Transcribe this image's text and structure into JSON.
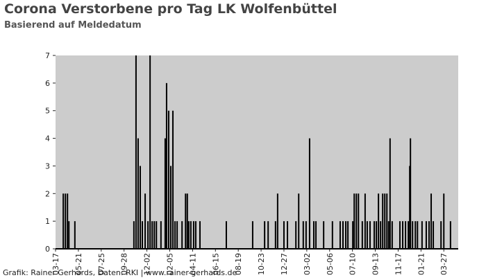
{
  "chart_data": {
    "type": "bar",
    "title": "Corona Verstorbene pro Tag LK Wolfenbüttel",
    "subtitle": "Basierend auf Meldedatum",
    "footer": "Grafik: Rainer Gerhards, Daten: RKI | www.rainer-gerhards.de",
    "color": "#000000",
    "x": [
      22,
      28,
      34,
      38,
      55,
      223,
      229,
      235,
      241,
      247,
      255,
      263,
      269,
      275,
      281,
      287,
      300,
      312,
      316,
      322,
      328,
      334,
      340,
      346,
      360,
      370,
      375,
      379,
      385,
      393,
      399,
      411,
      486,
      561,
      595,
      605,
      626,
      632,
      650,
      660,
      684,
      692,
      705,
      713,
      723,
      735,
      741,
      763,
      788,
      810,
      818,
      826,
      832,
      846,
      850,
      856,
      862,
      873,
      881,
      887,
      895,
      907,
      913,
      919,
      925,
      931,
      937,
      943,
      948,
      952,
      958,
      980,
      988,
      996,
      1004,
      1008,
      1010,
      1016,
      1024,
      1030,
      1043,
      1055,
      1063,
      1069,
      1075,
      1097,
      1105,
      1124
    ],
    "values": [
      2,
      2,
      2,
      1,
      1,
      1,
      7,
      4,
      3,
      1,
      2,
      1,
      7,
      1,
      1,
      1,
      1,
      4,
      6,
      5,
      3,
      5,
      1,
      1,
      1,
      2,
      2,
      1,
      1,
      1,
      1,
      1,
      1,
      1,
      1,
      1,
      1,
      2,
      1,
      1,
      1,
      2,
      1,
      1,
      4,
      1,
      1,
      1,
      1,
      1,
      1,
      1,
      1,
      1,
      2,
      2,
      2,
      1,
      2,
      1,
      1,
      1,
      1,
      2,
      1,
      2,
      2,
      2,
      1,
      4,
      1,
      1,
      1,
      1,
      1,
      3,
      4,
      1,
      1,
      1,
      1,
      1,
      1,
      2,
      1,
      1,
      2,
      1
    ],
    "xlim": [
      0,
      1146
    ],
    "xticks": [
      {
        "value": 0,
        "label": "03-17"
      },
      {
        "value": 65,
        "label": "05-21"
      },
      {
        "value": 130,
        "label": "07-25"
      },
      {
        "value": 195,
        "label": "09-28"
      },
      {
        "value": 260,
        "label": "12-02"
      },
      {
        "value": 325,
        "label": "02-05"
      },
      {
        "value": 390,
        "label": "04-11"
      },
      {
        "value": 455,
        "label": "06-15"
      },
      {
        "value": 520,
        "label": "08-19"
      },
      {
        "value": 585,
        "label": "10-23"
      },
      {
        "value": 650,
        "label": "12-27"
      },
      {
        "value": 715,
        "label": "03-02"
      },
      {
        "value": 780,
        "label": "05-06"
      },
      {
        "value": 845,
        "label": "07-10"
      },
      {
        "value": 910,
        "label": "09-13"
      },
      {
        "value": 975,
        "label": "11-17"
      },
      {
        "value": 1040,
        "label": "01-21"
      },
      {
        "value": 1105,
        "label": "03-27"
      }
    ],
    "ylim": [
      0,
      7
    ],
    "yticks": [
      0,
      1,
      2,
      3,
      4,
      5,
      6,
      7
    ],
    "plot_background": "#cccccc"
  }
}
